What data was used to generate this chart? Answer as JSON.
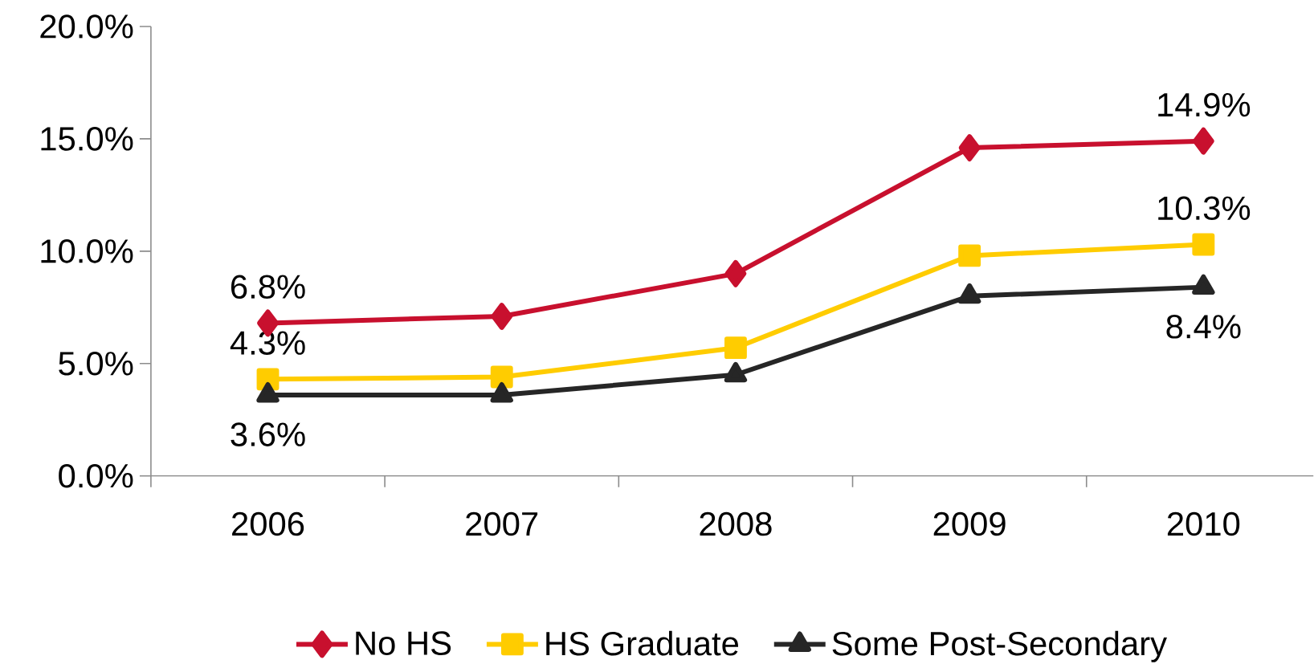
{
  "chart_data": {
    "type": "line",
    "categories": [
      "2006",
      "2007",
      "2008",
      "2009",
      "2010"
    ],
    "series": [
      {
        "name": "No HS",
        "color": "#c8102e",
        "marker": "diamond",
        "values": [
          6.8,
          7.1,
          9.0,
          14.6,
          14.9
        ],
        "value_labels": [
          "6.8%",
          null,
          null,
          null,
          "14.9%"
        ]
      },
      {
        "name": "HS Graduate",
        "color": "#ffcc00",
        "marker": "square",
        "values": [
          4.3,
          4.4,
          5.7,
          9.8,
          10.3
        ],
        "value_labels": [
          "4.3%",
          null,
          null,
          null,
          "10.3%"
        ]
      },
      {
        "name": "Some Post-Secondary",
        "color": "#262626",
        "marker": "triangle",
        "values": [
          3.6,
          3.6,
          4.5,
          8.0,
          8.4
        ],
        "value_labels": [
          "3.6%",
          null,
          null,
          null,
          "8.4%"
        ]
      }
    ],
    "ylim": [
      0,
      20
    ],
    "yticks": [
      {
        "value": 0,
        "label": "0.0%"
      },
      {
        "value": 5,
        "label": "5.0%"
      },
      {
        "value": 10,
        "label": "10.0%"
      },
      {
        "value": 15,
        "label": "15.0%"
      },
      {
        "value": 20,
        "label": "20.0%"
      }
    ],
    "grid": false,
    "legend": "bottom",
    "line_style": "solid"
  }
}
